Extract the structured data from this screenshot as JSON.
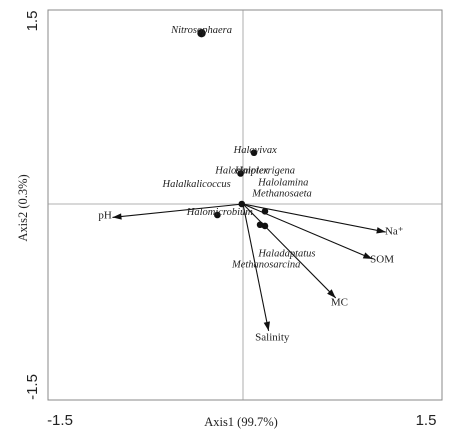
{
  "chart_data": {
    "type": "scatter",
    "xlabel": "Axis1 (99.7%)",
    "ylabel": "Axis2 (0.3%)",
    "xlim": [
      -1.5,
      1.5
    ],
    "ylim": [
      -1.5,
      1.5
    ],
    "xticks": [
      "-1.5",
      "1.5"
    ],
    "yticks": [
      "1.5",
      "-1.5"
    ],
    "reference_lines": {
      "x": 0,
      "y": 0
    },
    "points": [
      {
        "name": "Nitrosophaera",
        "x": -0.34,
        "y": 1.4
      },
      {
        "name": "Halovivax",
        "x": 0.1,
        "y": 0.42
      },
      {
        "name": "Halosimplex",
        "x": -0.01,
        "y": 0.25
      },
      {
        "name": "Haloterrigena",
        "x": 0.18,
        "y": 0.25
      },
      {
        "name": "Halolamina",
        "x": 0.33,
        "y": 0.15
      },
      {
        "name": "Methanosaeta",
        "x": 0.32,
        "y": 0.06
      },
      {
        "name": "Halalkalicoccus",
        "x": -0.38,
        "y": 0.14
      },
      {
        "name": "Halomicrobium",
        "x": -0.19,
        "y": -0.09
      },
      {
        "name": "Haladaptatus",
        "x": 0.36,
        "y": -0.43
      },
      {
        "name": "Methanosarcina",
        "x": 0.19,
        "y": -0.52
      }
    ],
    "point_markers": [
      {
        "x": -0.34,
        "y": 1.4
      },
      {
        "x": 0.09,
        "y": 0.42
      },
      {
        "x": -0.02,
        "y": 0.25
      },
      {
        "x": -0.01,
        "y": 0.0
      },
      {
        "x": 0.18,
        "y": -0.06
      },
      {
        "x": 0.14,
        "y": -0.17
      },
      {
        "x": 0.18,
        "y": -0.18
      },
      {
        "x": -0.21,
        "y": -0.09
      }
    ],
    "env_vectors": [
      {
        "name": "pH",
        "x": -1.07,
        "y": -0.11
      },
      {
        "name": "Na⁺",
        "x": 1.17,
        "y": -0.23
      },
      {
        "name": "SOM",
        "x": 1.06,
        "y": -0.45
      },
      {
        "name": "MC",
        "x": 0.76,
        "y": -0.77
      },
      {
        "name": "Salinity",
        "x": 0.21,
        "y": -1.04
      }
    ],
    "env_labels": [
      {
        "name": "pH",
        "x": -1.13,
        "y": -0.12
      },
      {
        "name": "Na⁺",
        "x": 1.24,
        "y": -0.25
      },
      {
        "name": "SOM",
        "x": 1.14,
        "y": -0.48
      },
      {
        "name": "MC",
        "x": 0.79,
        "y": -0.83
      },
      {
        "name": "Salinity",
        "x": 0.24,
        "y": -1.12
      }
    ]
  }
}
